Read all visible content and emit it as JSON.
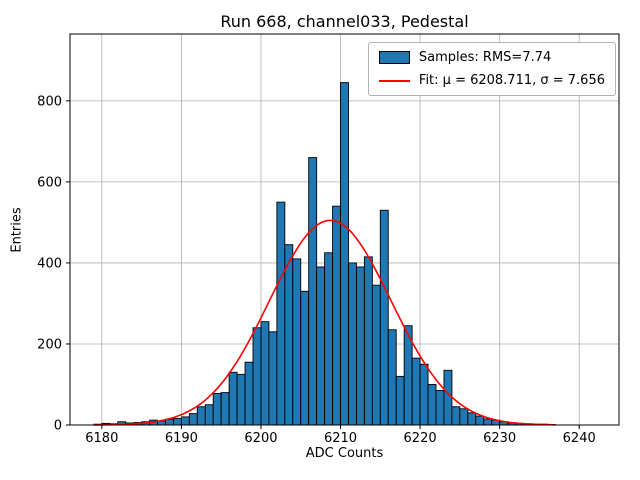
{
  "figure": {
    "background": "#ffffff"
  },
  "chart_data": {
    "type": "bar",
    "title": "Run 668, channel033, Pedestal",
    "xlabel": "ADC Counts",
    "ylabel": "Entries",
    "xlim": [
      6176,
      6245
    ],
    "ylim": [
      0,
      965
    ],
    "xticks": [
      6180,
      6190,
      6200,
      6210,
      6220,
      6230,
      6240
    ],
    "yticks": [
      0,
      200,
      400,
      600,
      800
    ],
    "grid": true,
    "grid_color": "#b0b0b0",
    "bar_color": "#1f77b4",
    "bar_edge_color": "#000000",
    "bin_start": 6179,
    "bin_width": 1,
    "counts": [
      2,
      4,
      3,
      8,
      5,
      6,
      8,
      12,
      10,
      14,
      16,
      20,
      28,
      45,
      50,
      78,
      80,
      130,
      125,
      155,
      240,
      255,
      230,
      550,
      445,
      410,
      330,
      660,
      390,
      425,
      540,
      845,
      400,
      390,
      415,
      345,
      530,
      235,
      120,
      245,
      165,
      150,
      100,
      85,
      135,
      45,
      40,
      30,
      22,
      15,
      12,
      8,
      5,
      4,
      3,
      2,
      2,
      1
    ],
    "fit": {
      "mu": 6208.711,
      "sigma": 7.656,
      "amplitude": 505,
      "color": "#ff0000",
      "x_start": 6179,
      "x_end": 6237
    },
    "legend": {
      "position": "upper right",
      "entries": [
        {
          "swatch": "patch",
          "label": "Samples: RMS=7.74"
        },
        {
          "swatch": "line",
          "label": "Fit: μ = 6208.711, σ = 7.656"
        }
      ]
    }
  }
}
